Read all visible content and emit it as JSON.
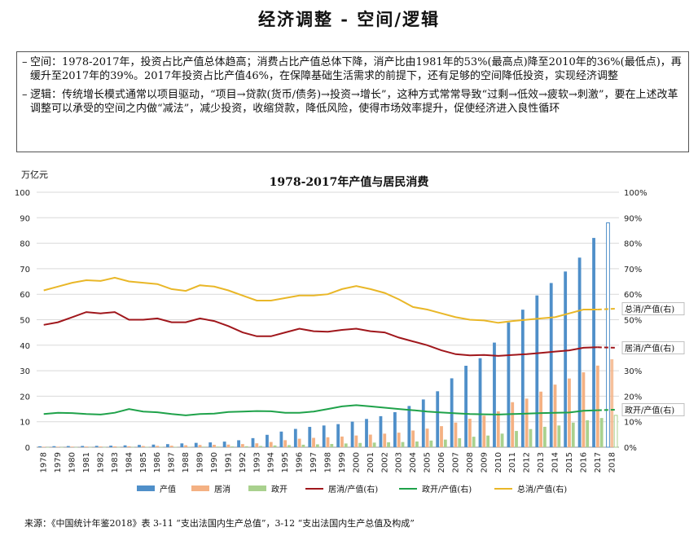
{
  "page": {
    "title": "经济调整 - 空间/逻辑",
    "notes": [
      {
        "bullet": "–",
        "text": "空间：1978-2017年，投资占比产值总体趋高；消费占比产值总体下降，消产比由1981年的53%(最高点)降至2010年的36%(最低点)，再缓升至2017年的39%。2017年投资占比产值46%，在保障基础生活需求的前提下，还有足够的空间降低投资，实现经济调整"
      },
      {
        "bullet": "–",
        "text": "逻辑：传统增长模式通常以项目驱动，“项目→贷款(货币/债务)→投资→增长”，这种方式常常导致“过剩→低效→疲软→刺激”，要在上述改革调整可以承受的空间之内做“减法”，减少投资，收缩贷款，降低风险，使得市场效率提升，促使经济进入良性循环"
      }
    ],
    "unit": "万亿元",
    "source": "来源：《中国统计年鉴2018》表 3-11 “支出法国内生产总值”，3-12 “支出法国内生产总值及构成”"
  },
  "chart_data": {
    "type": "bar",
    "title": "1978-2017年产值与居民消费",
    "ylim": [
      0,
      100
    ],
    "y2lim": [
      0,
      100
    ],
    "y_ticks": [
      "0",
      "10",
      "20",
      "30",
      "40",
      "50",
      "60",
      "70",
      "80",
      "90",
      "100"
    ],
    "y2_ticks": [
      "0%",
      "10%",
      "20%",
      "30%",
      "40%",
      "50%",
      "60%",
      "70%",
      "80%",
      "90%",
      "100%"
    ],
    "categories": [
      "1978",
      "1979",
      "1980",
      "1981",
      "1982",
      "1983",
      "1984",
      "1985",
      "1986",
      "1987",
      "1988",
      "1989",
      "1990",
      "1991",
      "1992",
      "1993",
      "1994",
      "1995",
      "1996",
      "1997",
      "1998",
      "1999",
      "2000",
      "2001",
      "2002",
      "2003",
      "2004",
      "2005",
      "2006",
      "2007",
      "2008",
      "2009",
      "2010",
      "2011",
      "2012",
      "2013",
      "2014",
      "2015",
      "2016",
      "2017",
      "2018"
    ],
    "bar_series": [
      {
        "name": "产值",
        "color": "#4f8fc9",
        "values": [
          0.36,
          0.41,
          0.46,
          0.49,
          0.54,
          0.6,
          0.73,
          0.91,
          1.03,
          1.21,
          1.5,
          1.71,
          1.89,
          2.2,
          2.73,
          3.56,
          4.86,
          6.13,
          7.18,
          7.97,
          8.52,
          9.06,
          10.03,
          11.09,
          12.17,
          13.74,
          16.18,
          18.73,
          21.94,
          27.02,
          31.95,
          34.91,
          41.03,
          48.93,
          53.94,
          59.52,
          64.4,
          68.91,
          74.36,
          82.08,
          null
        ]
      },
      {
        "name": "居消",
        "color": "#f4b183",
        "values": [
          0.18,
          0.2,
          0.23,
          0.26,
          0.28,
          0.32,
          0.37,
          0.46,
          0.52,
          0.59,
          0.76,
          0.87,
          0.94,
          1.03,
          1.23,
          1.53,
          2.05,
          2.76,
          3.33,
          3.67,
          3.89,
          4.19,
          4.59,
          4.94,
          5.32,
          5.71,
          6.55,
          7.3,
          8.26,
          9.65,
          11.16,
          12.38,
          14.06,
          17.66,
          19.06,
          21.8,
          24.55,
          26.95,
          29.37,
          32.01,
          null
        ]
      },
      {
        "name": "政开",
        "color": "#a9d18e",
        "values": [
          0.05,
          0.06,
          0.07,
          0.07,
          0.07,
          0.08,
          0.11,
          0.13,
          0.14,
          0.15,
          0.18,
          0.22,
          0.25,
          0.31,
          0.38,
          0.49,
          0.69,
          0.82,
          0.98,
          1.13,
          1.27,
          1.47,
          1.67,
          1.81,
          1.92,
          2.03,
          2.24,
          2.61,
          2.99,
          3.52,
          4.11,
          4.57,
          5.33,
          6.37,
          7.12,
          8.01,
          8.52,
          9.65,
          10.58,
          11.46,
          null
        ]
      }
    ],
    "line_series": [
      {
        "name": "居消/产值(右)",
        "color": "#a0171c",
        "values": [
          48,
          49,
          51,
          53,
          52.5,
          53,
          50,
          50,
          50.5,
          49,
          49,
          50.5,
          49.5,
          47.5,
          45,
          43.5,
          43.5,
          45,
          46.5,
          45.5,
          45.3,
          46,
          46.5,
          45.5,
          45,
          43,
          41.5,
          40,
          38,
          36.5,
          36,
          36.2,
          35.8,
          36.2,
          36.5,
          37,
          37.5,
          38,
          39,
          39.2,
          null
        ]
      },
      {
        "name": "政开/产值(右)",
        "color": "#1fa24a",
        "values": [
          13,
          13.5,
          13.4,
          13,
          12.8,
          13.5,
          15,
          14,
          13.7,
          13,
          12.5,
          13,
          13.2,
          13.8,
          14,
          14.2,
          14.1,
          13.5,
          13.5,
          14,
          15,
          16,
          16.5,
          16,
          15.5,
          15,
          14.5,
          14,
          13.6,
          13.3,
          13,
          12.9,
          12.8,
          13,
          13.2,
          13.4,
          13.5,
          13.6,
          14.3,
          14.5,
          null
        ]
      },
      {
        "name": "总消/产值(右)",
        "color": "#e9b728",
        "values": [
          61.5,
          63,
          64.5,
          65.5,
          65.2,
          66.5,
          65,
          64.5,
          64,
          62,
          61.3,
          63.5,
          63,
          61.5,
          59.5,
          57.5,
          57.5,
          58.5,
          59.5,
          59.5,
          60,
          62,
          63.2,
          62,
          60.5,
          58,
          55,
          54,
          52.5,
          51,
          50,
          49.7,
          48.8,
          49.5,
          50,
          50.5,
          51,
          52.5,
          54,
          54,
          null
        ]
      }
    ],
    "projection_2018": [
      {
        "series": "产值",
        "value": 88,
        "style": "outline"
      },
      {
        "series": "居消",
        "value": 34.5
      },
      {
        "series": "政开",
        "value": 12.5,
        "style": "outline"
      },
      {
        "series": "总消/产值(右)",
        "value": 54.3,
        "label": "总消/产值(右)"
      },
      {
        "series": "居消/产值(右)",
        "value": 39,
        "label": "居消/产值(右)"
      },
      {
        "series": "政开/产值(右)",
        "value": 14.7,
        "label": "政开/产值(右)"
      }
    ],
    "legend": {
      "position": "bottom",
      "items": [
        "产值",
        "居消",
        "政开",
        "居消/产值(右)",
        "政开/产值(右)",
        "总消/产值(右)"
      ]
    },
    "grid": true
  }
}
